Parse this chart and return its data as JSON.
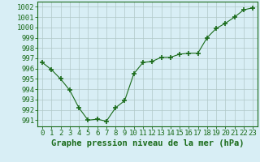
{
  "x": [
    0,
    1,
    2,
    3,
    4,
    5,
    6,
    7,
    8,
    9,
    10,
    11,
    12,
    13,
    14,
    15,
    16,
    17,
    18,
    19,
    20,
    21,
    22,
    23
  ],
  "y": [
    996.6,
    995.9,
    995.0,
    993.9,
    992.2,
    991.0,
    991.1,
    990.9,
    992.2,
    992.9,
    995.5,
    996.6,
    996.7,
    997.1,
    997.1,
    997.4,
    997.5,
    997.5,
    999.0,
    999.9,
    1000.4,
    1001.0,
    1001.7,
    1001.9
  ],
  "line_color": "#1a6b1a",
  "marker": "+",
  "marker_size": 4,
  "marker_linewidth": 1.2,
  "bg_color": "#d8eef5",
  "grid_color": "#b0c8c8",
  "ylabel_ticks": [
    991,
    992,
    993,
    994,
    995,
    996,
    997,
    998,
    999,
    1000,
    1001,
    1002
  ],
  "ylim": [
    990.4,
    1002.5
  ],
  "xlim": [
    -0.5,
    23.5
  ],
  "xlabel": "Graphe pression niveau de la mer (hPa)",
  "xlabel_fontsize": 7.5,
  "tick_fontsize": 6.5
}
